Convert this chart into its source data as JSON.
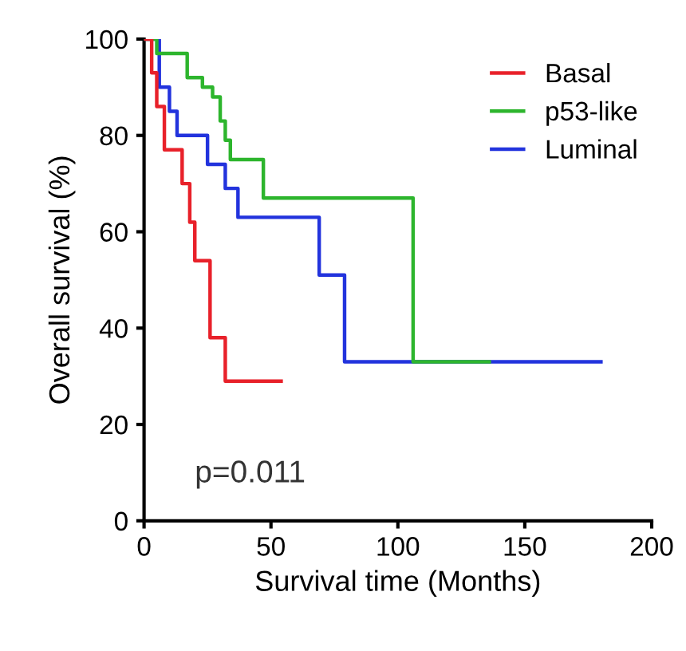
{
  "chart_data": {
    "type": "step",
    "xlabel": "Survival time (Months)",
    "ylabel": "Overall survival (%)",
    "series": [
      {
        "name": "Basal",
        "color": "#e8212a",
        "x": [
          0,
          3,
          5,
          8,
          15,
          18,
          20,
          26,
          32,
          54
        ],
        "values": [
          100,
          93,
          86,
          77,
          70,
          62,
          54,
          38,
          29,
          29
        ]
      },
      {
        "name": "p53-like",
        "color": "#2db52d",
        "x": [
          0,
          5,
          17,
          23,
          27,
          30,
          32,
          34,
          47,
          106,
          136
        ],
        "values": [
          100,
          97,
          92,
          90,
          88,
          83,
          79,
          75,
          67,
          33,
          33
        ]
      },
      {
        "name": "Luminal",
        "color": "#2233dd",
        "x": [
          0,
          6,
          10,
          13,
          25,
          32,
          37,
          69,
          79,
          180
        ],
        "values": [
          100,
          90,
          85,
          80,
          74,
          69,
          63,
          51,
          33,
          33
        ]
      }
    ],
    "xlim": [
      0,
      200
    ],
    "ylim": [
      0,
      100
    ],
    "xticks": [
      0,
      50,
      100,
      150,
      200
    ],
    "yticks": [
      0,
      20,
      40,
      60,
      80,
      100
    ],
    "grid": false,
    "legend": "top right",
    "annotations": [
      "p=0.011"
    ]
  }
}
